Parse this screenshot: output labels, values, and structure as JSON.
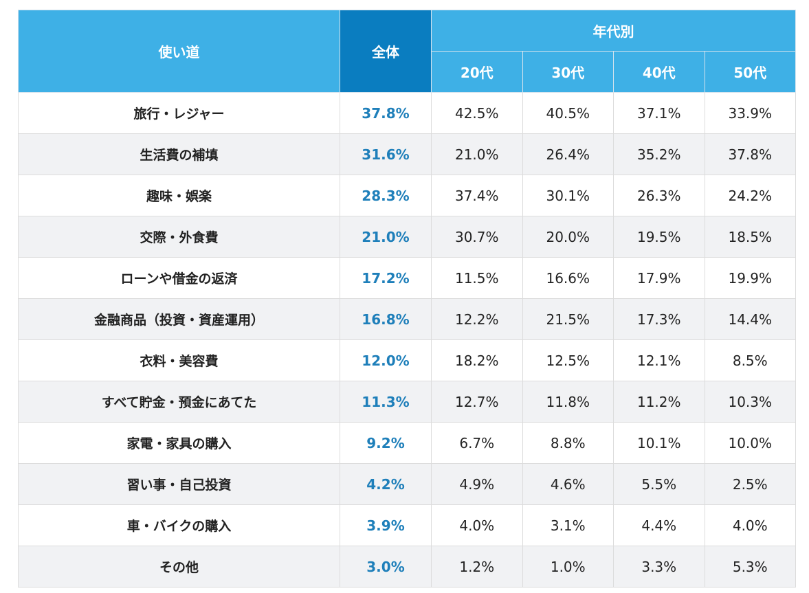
{
  "chart_data": {
    "type": "table",
    "header": {
      "use_label": "使い道",
      "all_label": "全体",
      "age_group_label": "年代別",
      "age_columns": [
        "20代",
        "30代",
        "40代",
        "50代"
      ]
    },
    "rows": [
      {
        "label": "旅行・レジャー",
        "all": "37.8%",
        "ages": [
          "42.5%",
          "40.5%",
          "37.1%",
          "33.9%"
        ]
      },
      {
        "label": "生活費の補填",
        "all": "31.6%",
        "ages": [
          "21.0%",
          "26.4%",
          "35.2%",
          "37.8%"
        ]
      },
      {
        "label": "趣味・娯楽",
        "all": "28.3%",
        "ages": [
          "37.4%",
          "30.1%",
          "26.3%",
          "24.2%"
        ]
      },
      {
        "label": "交際・外食費",
        "all": "21.0%",
        "ages": [
          "30.7%",
          "20.0%",
          "19.5%",
          "18.5%"
        ]
      },
      {
        "label": "ローンや借金の返済",
        "all": "17.2%",
        "ages": [
          "11.5%",
          "16.6%",
          "17.9%",
          "19.9%"
        ]
      },
      {
        "label": "金融商品（投資・資産運用）",
        "all": "16.8%",
        "ages": [
          "12.2%",
          "21.5%",
          "17.3%",
          "14.4%"
        ]
      },
      {
        "label": "衣料・美容費",
        "all": "12.0%",
        "ages": [
          "18.2%",
          "12.5%",
          "12.1%",
          "8.5%"
        ]
      },
      {
        "label": "すべて貯金・預金にあてた",
        "all": "11.3%",
        "ages": [
          "12.7%",
          "11.8%",
          "11.2%",
          "10.3%"
        ]
      },
      {
        "label": "家電・家具の購入",
        "all": "9.2%",
        "ages": [
          "6.7%",
          "8.8%",
          "10.1%",
          "10.0%"
        ]
      },
      {
        "label": "習い事・自己投資",
        "all": "4.2%",
        "ages": [
          "4.9%",
          "4.6%",
          "5.5%",
          "2.5%"
        ]
      },
      {
        "label": "車・バイクの購入",
        "all": "3.9%",
        "ages": [
          "4.0%",
          "3.1%",
          "4.4%",
          "4.0%"
        ]
      },
      {
        "label": "その他",
        "all": "3.0%",
        "ages": [
          "1.2%",
          "1.0%",
          "3.3%",
          "5.3%"
        ]
      }
    ],
    "colors": {
      "header": "#3eb0e6",
      "header_all": "#0a7dc0",
      "all_value": "#1e7fba",
      "stripe": "#f1f2f4"
    }
  }
}
